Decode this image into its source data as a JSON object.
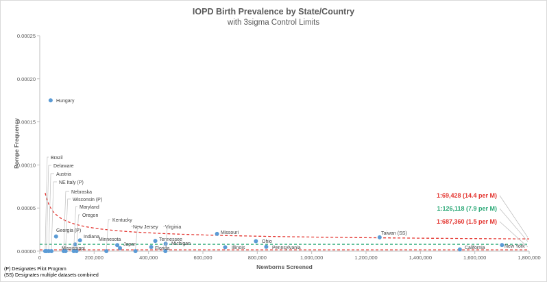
{
  "chart_data": {
    "type": "scatter",
    "title": "IOPD Birth Prevalence by State/Country",
    "subtitle": "with 3sigma Control Limits",
    "xlabel": "Newborns Screened",
    "ylabel": "Pompe Frequency",
    "xlim": [
      0,
      1800000
    ],
    "ylim": [
      0,
      0.00025
    ],
    "x_ticks": [
      0,
      200000,
      400000,
      600000,
      800000,
      1000000,
      1200000,
      1400000,
      1600000,
      1800000
    ],
    "x_tick_labels": [
      "0",
      "200,000",
      "400,000",
      "600,000",
      "800,000",
      "1,000,000",
      "1,200,000",
      "1,400,000",
      "1,600,000",
      "1,800,000"
    ],
    "y_ticks": [
      0,
      5e-05,
      0.0001,
      0.00015,
      0.0002,
      0.00025
    ],
    "y_tick_labels": [
      "0.00000",
      "0.00005",
      "0.00010",
      "0.00015",
      "0.00020",
      "0.00025"
    ],
    "grid": false,
    "point_color": "#5b9bd5",
    "points": [
      {
        "label": "Hungary",
        "x": 40000,
        "y": 0.000175
      },
      {
        "label": "Brazil",
        "x": 20000,
        "y": 0.0
      },
      {
        "label": "Delaware",
        "x": 25000,
        "y": 0.0
      },
      {
        "label": "Austria",
        "x": 33000,
        "y": 0.0
      },
      {
        "label": "NE Italy (P)",
        "x": 43000,
        "y": 0.0
      },
      {
        "label": "Nebraska",
        "x": 88000,
        "y": 0.0
      },
      {
        "label": "Wisconsin (P)",
        "x": 95000,
        "y": 0.0
      },
      {
        "label": "Maryland",
        "x": 125000,
        "y": 0.0
      },
      {
        "label": "Oregon",
        "x": 135000,
        "y": 0.0
      },
      {
        "label": "Georgia (P)",
        "x": 60000,
        "y": 1.7e-05
      },
      {
        "label": "Indiana",
        "x": 148000,
        "y": 1.25e-05
      },
      {
        "label": "Mississippi",
        "x": 130000,
        "y": 7.8e-06
      },
      {
        "label": "Kentucky",
        "x": 245000,
        "y": 0.0
      },
      {
        "label": "Minnesota",
        "x": 285000,
        "y": 7e-06
      },
      {
        "label": "Japan",
        "x": 295000,
        "y": 3.5e-06
      },
      {
        "label": "New Jersey",
        "x": 352000,
        "y": 0.0
      },
      {
        "label": "Florida",
        "x": 410000,
        "y": 4.8e-06
      },
      {
        "label": "Tennessee",
        "x": 425000,
        "y": 1.18e-05
      },
      {
        "label": "Virginia",
        "x": 462000,
        "y": 0.0
      },
      {
        "label": "Michigan",
        "x": 463000,
        "y": 8.6e-06
      },
      {
        "label": "Missouri",
        "x": 652000,
        "y": 2e-05
      },
      {
        "label": "Illinois",
        "x": 682000,
        "y": 4.5e-06
      },
      {
        "label": "Ohio",
        "x": 795000,
        "y": 1.15e-05
      },
      {
        "label": "Pennsylvania",
        "x": 833000,
        "y": 5e-06
      },
      {
        "label": "Taiwan (SS)",
        "x": 1250000,
        "y": 1.6e-05
      },
      {
        "label": "California",
        "x": 1545000,
        "y": 2e-06
      },
      {
        "label": "New York",
        "x": 1700000,
        "y": 7.1e-06
      }
    ],
    "reference_lines": [
      {
        "label": "1:69,428 (14.4 per M)",
        "type": "upper-limit",
        "color": "#e3342f"
      },
      {
        "label": "1:126,118 (7.9 per M)",
        "type": "mean",
        "color": "#2aa876",
        "y": 7.9e-06
      },
      {
        "label": "1:687,360 (1.5 per M)",
        "type": "lower-limit",
        "color": "#e3342f",
        "y": 1.5e-06
      }
    ]
  },
  "notes": {
    "pilot": "(P) Designates Pilot Program",
    "combined": "(SS) Designates multiple datasets combined"
  }
}
